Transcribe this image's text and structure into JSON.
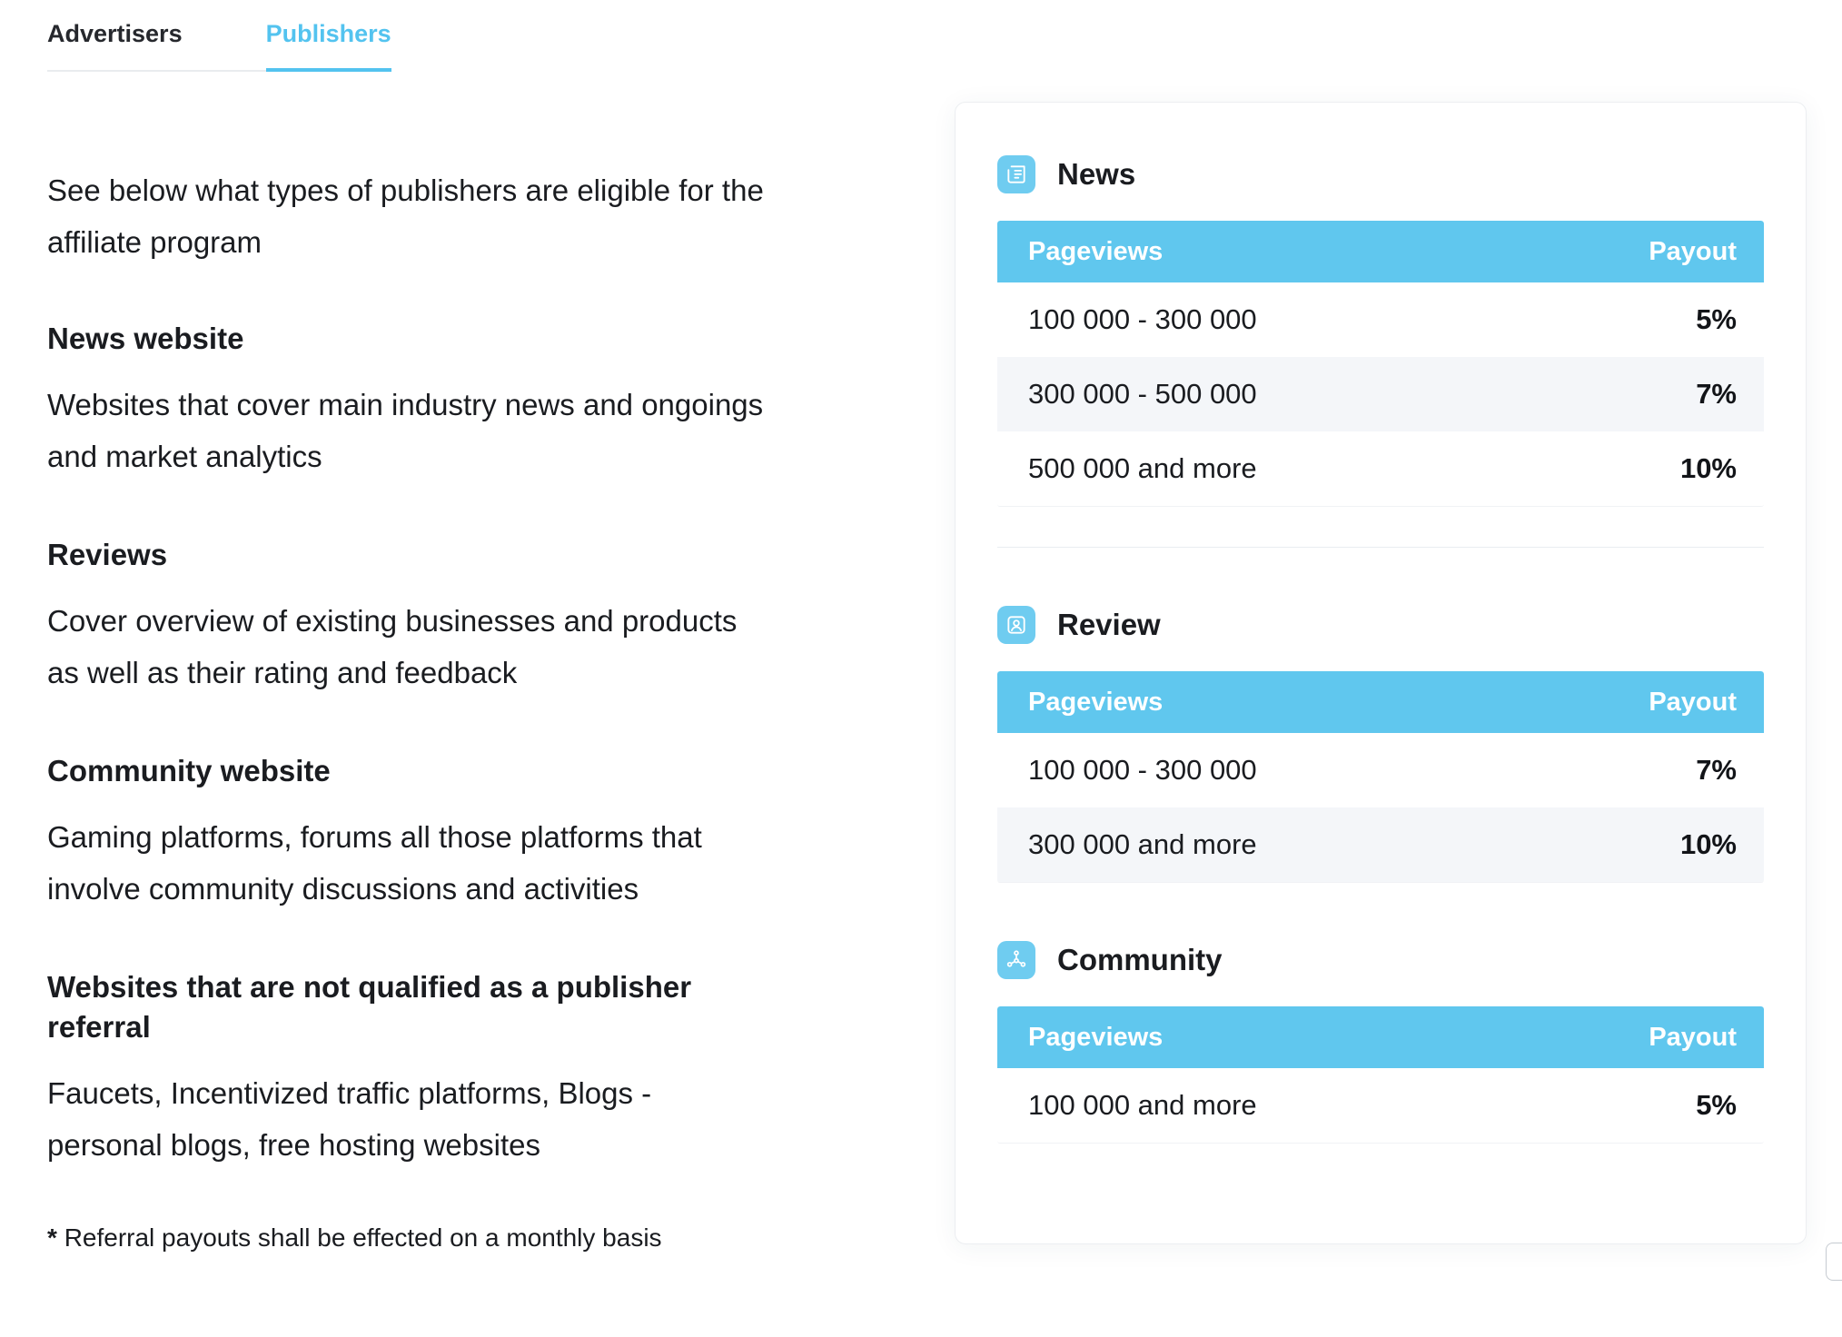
{
  "tabs": [
    {
      "label": "Advertisers",
      "active": false
    },
    {
      "label": "Publishers",
      "active": true
    }
  ],
  "intro": "See below what types of publishers are eligible for the affiliate program",
  "sections": [
    {
      "heading": "News website",
      "body": "Websites that cover main industry news and ongoings and market analytics"
    },
    {
      "heading": "Reviews",
      "body": "Cover overview of existing businesses and products as well as their rating and feedback"
    },
    {
      "heading": "Community website",
      "body": "Gaming platforms, forums all those platforms that involve community discussions and activities"
    },
    {
      "heading": "Websites that are not qualified as a publisher referral",
      "body": "Faucets, Incentivized traffic platforms, Blogs - personal blogs, free hosting websites"
    }
  ],
  "footnote": {
    "star": "*",
    "text": "Referral payouts shall be effected on a monthly basis"
  },
  "card": {
    "tables": [
      {
        "title": "News",
        "icon": "news-icon",
        "headers": [
          "Pageviews",
          "Payout"
        ],
        "rows": [
          [
            "100 000 - 300 000",
            "5%"
          ],
          [
            "300 000 - 500 000",
            "7%"
          ],
          [
            "500 000 and more",
            "10%"
          ]
        ]
      },
      {
        "title": "Review",
        "icon": "review-icon",
        "headers": [
          "Pageviews",
          "Payout"
        ],
        "rows": [
          [
            "100 000 - 300 000",
            "7%"
          ],
          [
            "300 000 and more",
            "10%"
          ]
        ]
      },
      {
        "title": "Community",
        "icon": "community-icon",
        "headers": [
          "Pageviews",
          "Payout"
        ],
        "rows": [
          [
            "100 000 and more",
            "5%"
          ]
        ]
      }
    ]
  },
  "colors": {
    "accent": "#53C3EF",
    "table_header": "#60C7EE",
    "row_alt": "#F4F6F9",
    "icon_bg": "#6FCCF0",
    "text": "#1A1C20"
  }
}
